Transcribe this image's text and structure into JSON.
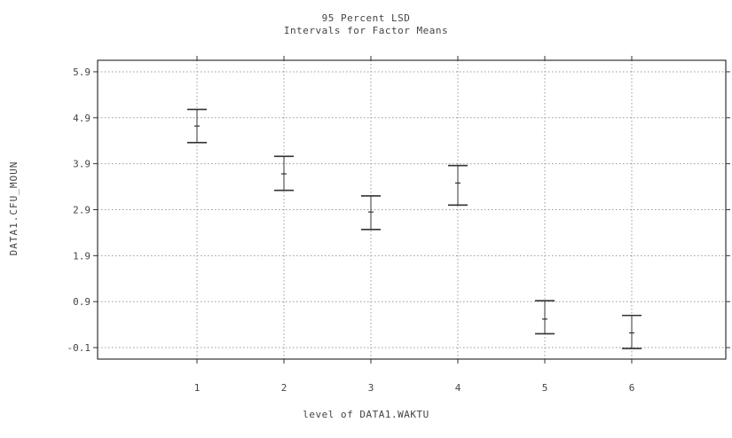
{
  "chart_data": {
    "type": "errorbar",
    "title": "95 Percent LSD",
    "subtitle": "Intervals for Factor Means",
    "xlabel": "level of DATA1.WAKTU",
    "ylabel": "DATA1.CFU_MOUN",
    "categories": [
      "1",
      "2",
      "3",
      "4",
      "5",
      "6"
    ],
    "y_ticks": [
      "5.9",
      "4.9",
      "3.9",
      "2.9",
      "1.9",
      "0.9",
      "-0.1"
    ],
    "y_tick_values": [
      5.9,
      4.9,
      3.9,
      2.9,
      1.9,
      0.9,
      -0.1
    ],
    "ylim": [
      -0.35,
      6.15
    ],
    "grid": true,
    "series": [
      {
        "means": [
          4.72,
          3.68,
          2.85,
          3.48,
          0.52,
          0.22
        ],
        "lower": [
          4.36,
          3.32,
          2.47,
          3.0,
          0.2,
          -0.12
        ],
        "upper": [
          5.08,
          4.06,
          3.2,
          3.86,
          0.92,
          0.6
        ]
      }
    ],
    "colors": {
      "axis": "#333333",
      "grid": "#9a9a9a",
      "errorbar": "#333333"
    }
  }
}
